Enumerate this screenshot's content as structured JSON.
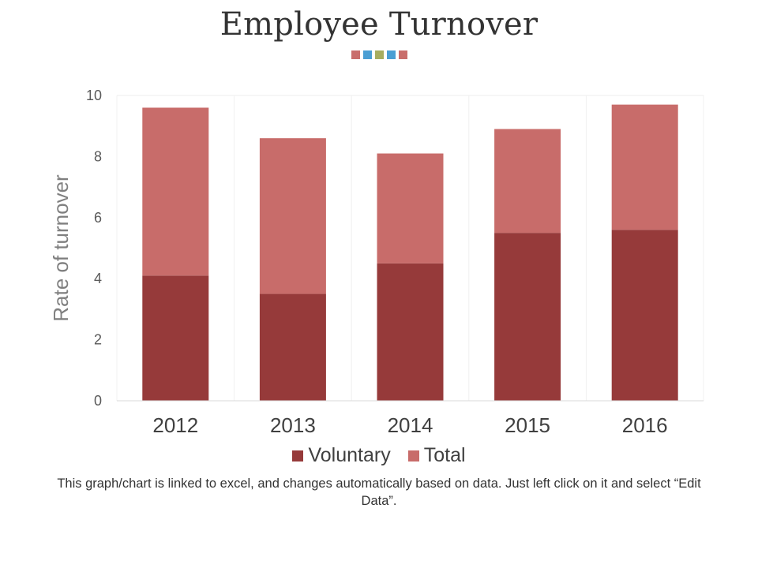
{
  "slide": {
    "title": "Employee Turnover",
    "footnote": "This graph/chart is linked to excel, and changes automatically based on data. Just left click on it and select “Edit Data”.",
    "title_dot_colors": [
      "#c96e6c",
      "#4a9fd4",
      "#a7ad60",
      "#4a9fd4",
      "#c96e6c"
    ]
  },
  "chart_data": {
    "type": "bar",
    "stacked": true,
    "title": "",
    "xlabel": "",
    "ylabel": "Rate of  turnover",
    "ylim": [
      0,
      10
    ],
    "yticks": [
      "0",
      "2",
      "4",
      "6",
      "8",
      "10"
    ],
    "categories": [
      "2012",
      "2013",
      "2014",
      "2015",
      "2016"
    ],
    "series": [
      {
        "name": "Voluntary",
        "color": "#963a3a",
        "values": [
          4.1,
          3.5,
          4.5,
          5.5,
          5.6
        ]
      },
      {
        "name": "Total",
        "color": "#c86c6a",
        "values": [
          5.5,
          5.1,
          3.6,
          3.4,
          4.1
        ]
      }
    ],
    "legend_position": "bottom",
    "grid": "vertical-light"
  }
}
